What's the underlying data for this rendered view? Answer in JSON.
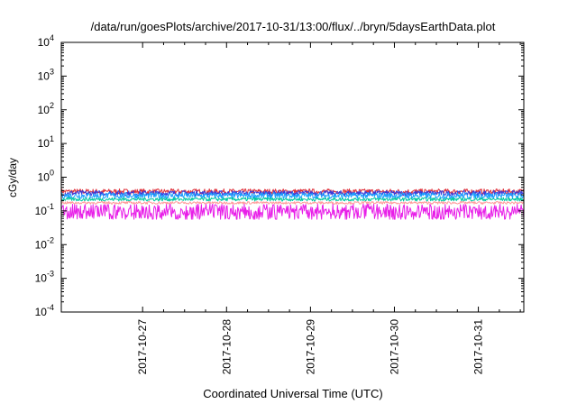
{
  "chart_data": {
    "type": "line",
    "title": "/data/run/goesPlots/archive/2017-10-31/13:00/flux/../bryn/5daysEarthData.plot",
    "xlabel": "Coordinated Universal Time (UTC)",
    "ylabel": "cGy/day",
    "yscale": "log",
    "ylim": [
      0.0001,
      10000
    ],
    "xlim": [
      "2017-10-26 00:45",
      "2017-10-31 13:00"
    ],
    "grid": false,
    "legend": "none",
    "x_ticks": [
      "2017-10-27",
      "2017-10-28",
      "2017-10-29",
      "2017-10-30",
      "2017-10-31"
    ],
    "y_ticks": [
      {
        "base": "10",
        "exp": "-4",
        "value": 0.0001
      },
      {
        "base": "10",
        "exp": "-3",
        "value": 0.001
      },
      {
        "base": "10",
        "exp": "-2",
        "value": 0.01
      },
      {
        "base": "10",
        "exp": "-1",
        "value": 0.1
      },
      {
        "base": "10",
        "exp": "0",
        "value": 1
      },
      {
        "base": "10",
        "exp": "1",
        "value": 10
      },
      {
        "base": "10",
        "exp": "2",
        "value": 100
      },
      {
        "base": "10",
        "exp": "3",
        "value": 1000
      },
      {
        "base": "10",
        "exp": "4",
        "value": 10000
      }
    ],
    "series": [
      {
        "color": "#e0303a",
        "values_approx_range": [
          0.28,
          0.45
        ]
      },
      {
        "color": "#3a3ad8",
        "values_approx_range": [
          0.25,
          0.4
        ]
      },
      {
        "color": "#1aa0ff",
        "values_approx_range": [
          0.2,
          0.35
        ]
      },
      {
        "color": "#00c8a0",
        "values_approx_range": [
          0.18,
          0.25
        ]
      },
      {
        "color": "#ff9a9a",
        "values_approx_range": [
          0.15,
          0.19
        ]
      },
      {
        "color": "#e81ee8",
        "values_approx_range": [
          0.04,
          0.16
        ]
      }
    ]
  }
}
